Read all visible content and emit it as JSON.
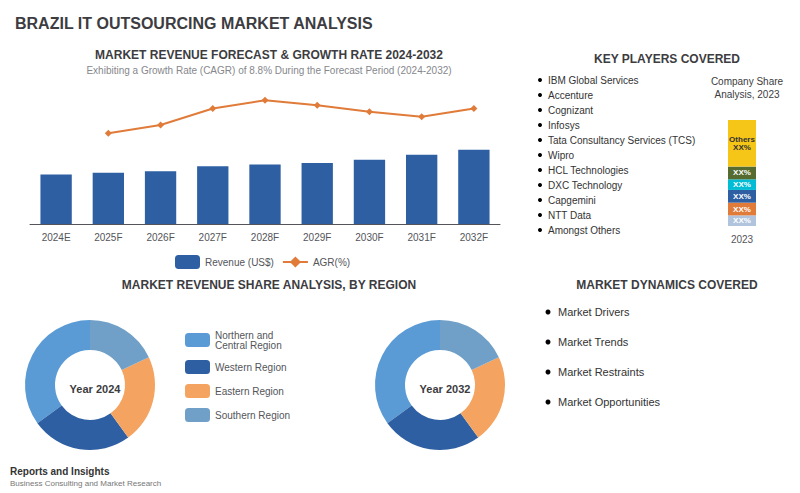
{
  "title": "BRAZIL IT OUTSOURCING MARKET ANALYSIS",
  "annotations": [
    "Reports and Insights",
    "Business Consulting and Market Research"
  ],
  "chart_data": [
    {
      "type": "bar",
      "title": "MARKET REVENUE FORECAST & GROWTH RATE 2024-2032",
      "subtitle": "Exhibiting a Growth Rate (CAGR) of 8.8% During the Forecast Period (2024-2032)",
      "categories": [
        "2024E",
        "2025F",
        "2026F",
        "2027F",
        "2028F",
        "2029F",
        "2030F",
        "2031F",
        "2032F"
      ],
      "series": [
        {
          "name": "Revenue (US$)",
          "type": "bar",
          "color": "#2e5fa3",
          "values": [
            3.0,
            3.1,
            3.2,
            3.5,
            3.6,
            3.7,
            3.9,
            4.2,
            4.5
          ]
        },
        {
          "name": "AGR(%)",
          "type": "line",
          "color": "#e07b39",
          "marker": "diamond",
          "values": [
            null,
            5.5,
            6.0,
            7.0,
            7.5,
            7.2,
            6.8,
            6.5,
            7.0
          ]
        }
      ],
      "ylim": [
        0,
        8
      ],
      "yticks": [
        0,
        2,
        4,
        6,
        8
      ],
      "tick_labels": "x",
      "grid": false,
      "legend": "bottom"
    },
    {
      "type": "pie",
      "title": "MARKET REVENUE SHARE ANALYSIS, BY REGION",
      "categories": [
        "Northern and\nCentral Region",
        "Western Region",
        "Eastern Region",
        "Southern Region"
      ],
      "series": [
        {
          "name": "Year 2024",
          "colors": [
            "#5b9bd5",
            "#2e5fa3",
            "#f4a460",
            "#70a0c8"
          ],
          "values": [
            35,
            25,
            22,
            18
          ]
        },
        {
          "name": "Year 2032",
          "colors": [
            "#5b9bd5",
            "#2e5fa3",
            "#f4a460",
            "#70a0c8"
          ],
          "values": [
            35,
            25,
            22,
            18
          ]
        }
      ],
      "legend": "right"
    },
    {
      "type": "list",
      "title": "KEY PLAYERS COVERED",
      "annotations": [
        "IBM Global Services",
        "Accenture",
        "Cognizant",
        "Infosys",
        "Tata Consultancy Services (TCS)",
        "Wipro",
        "HCL Technologies",
        "DXC Technology",
        "Capgemini",
        "NTT Data",
        "Amongst Others"
      ]
    },
    {
      "type": "bar",
      "title": "Company Share\nAnalysis, 2023",
      "stacked": true,
      "categories": [
        "2023"
      ],
      "series": [
        {
          "color": "#b0c4de",
          "values": [
            0.1
          ],
          "value_labels": [
            "XX%"
          ]
        },
        {
          "color": "#e07b39",
          "values": [
            0.12
          ],
          "value_labels": [
            "XX%"
          ]
        },
        {
          "color": "#2e5fa3",
          "values": [
            0.12
          ],
          "value_labels": [
            "XX%"
          ]
        },
        {
          "color": "#00bcd4",
          "values": [
            0.1
          ],
          "value_labels": [
            "XX%"
          ]
        },
        {
          "color": "#556b2f",
          "values": [
            0.12
          ],
          "value_labels": [
            "XX%"
          ]
        },
        {
          "color": "#f5c518",
          "values": [
            0.44
          ],
          "value_labels": [
            "Others\nXX%"
          ]
        }
      ],
      "ylim": [
        0,
        1.15
      ],
      "data_labels": true,
      "tick_labels": "x",
      "grid": false
    },
    {
      "type": "list",
      "title": "MARKET DYNAMICS COVERED",
      "annotations": [
        "Market Drivers",
        "Market Trends",
        "Market Restraints",
        "Market Opportunities"
      ]
    }
  ]
}
